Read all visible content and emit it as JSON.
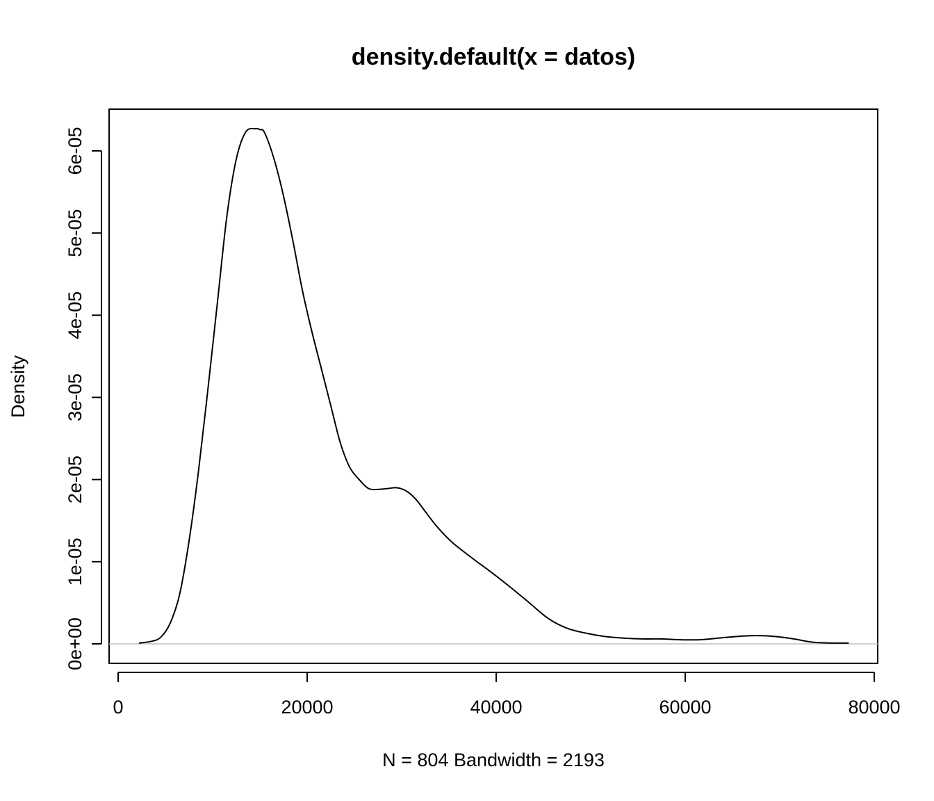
{
  "chart_data": {
    "type": "line",
    "title": "density.default(x = datos)",
    "xlabel": "N = 804   Bandwidth = 2193",
    "ylabel": "Density",
    "xlim": [
      0,
      80000
    ],
    "ylim": [
      0,
      6.5e-05
    ],
    "x_ticks": [
      {
        "value": 0,
        "label": "0"
      },
      {
        "value": 20000,
        "label": "20000"
      },
      {
        "value": 40000,
        "label": "40000"
      },
      {
        "value": 60000,
        "label": "60000"
      },
      {
        "value": 80000,
        "label": "80000"
      }
    ],
    "y_ticks": [
      {
        "value": 0,
        "label": "0e+00"
      },
      {
        "value": 1e-05,
        "label": "1e-05"
      },
      {
        "value": 2e-05,
        "label": "2e-05"
      },
      {
        "value": 3e-05,
        "label": "3e-05"
      },
      {
        "value": 4e-05,
        "label": "4e-05"
      },
      {
        "value": 5e-05,
        "label": "5e-05"
      },
      {
        "value": 6e-05,
        "label": "6e-05"
      }
    ],
    "zero_line_color": "#bebebe",
    "line_color": "#000000",
    "grid": false,
    "series": [
      {
        "x": [
          2200,
          3500,
          4500,
          5500,
          6500,
          7500,
          8500,
          9500,
          10500,
          11500,
          12500,
          13500,
          14500,
          15000,
          15500,
          16500,
          17500,
          18500,
          19500,
          20500,
          21500,
          22500,
          23500,
          24500,
          25500,
          26500,
          27500,
          28500,
          29500,
          30500,
          31500,
          32500,
          33500,
          34500,
          35500,
          37500,
          39500,
          41500,
          43500,
          45500,
          47500,
          49500,
          51500,
          53500,
          55500,
          57500,
          59500,
          61500,
          63500,
          65500,
          67500,
          69500,
          71500,
          73500,
          75500,
          77300
        ],
        "y": [
          1e-07,
          3e-07,
          8e-07,
          2.5e-06,
          6e-06,
          1.25e-05,
          2.1e-05,
          3.1e-05,
          4.15e-05,
          5.2e-05,
          5.9e-05,
          6.23e-05,
          6.27e-05,
          6.26e-05,
          6.22e-05,
          5.9e-05,
          5.45e-05,
          4.9e-05,
          4.3e-05,
          3.8e-05,
          3.35e-05,
          2.9e-05,
          2.45e-05,
          2.15e-05,
          2e-05,
          1.89e-05,
          1.88e-05,
          1.89e-05,
          1.9e-05,
          1.86e-05,
          1.76e-05,
          1.61e-05,
          1.46e-05,
          1.33e-05,
          1.22e-05,
          1.04e-05,
          8.7e-06,
          6.9e-06,
          5e-06,
          3.1e-06,
          1.9e-06,
          1.3e-06,
          9e-07,
          7e-07,
          6e-07,
          6e-07,
          5e-07,
          5e-07,
          7e-07,
          9e-07,
          1e-06,
          9e-07,
          6e-07,
          2e-07,
          1e-07,
          1e-07
        ]
      }
    ]
  }
}
